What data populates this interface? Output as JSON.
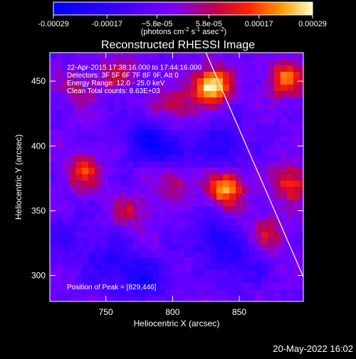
{
  "chart_data": {
    "type": "heatmap",
    "title": "Reconstructed RHESSI Image",
    "xlabel": "Heliocentric X (arcsec)",
    "ylabel": "Heliocentric Y (arcsec)",
    "xlim": [
      708,
      898
    ],
    "ylim": [
      280,
      472
    ],
    "x_ticks": [
      {
        "value": 750,
        "label": "750"
      },
      {
        "value": 800,
        "label": "800"
      },
      {
        "value": 850,
        "label": "850"
      }
    ],
    "y_ticks": [
      {
        "value": 300,
        "label": "300"
      },
      {
        "value": 350,
        "label": "350"
      },
      {
        "value": 400,
        "label": "400"
      },
      {
        "value": 450,
        "label": "450"
      }
    ],
    "colorbar": {
      "range": [
        -0.00029,
        0.00029
      ],
      "ticks": [
        {
          "value": -0.00029,
          "label": "-0.00029"
        },
        {
          "value": -0.00017,
          "label": "-0.00017"
        },
        {
          "value": -5.8e-05,
          "label": "−5.8e-05"
        },
        {
          "value": 5.8e-05,
          "label": "5.8e-05"
        },
        {
          "value": 0.00017,
          "label": "0.00017"
        },
        {
          "value": 0.00029,
          "label": "0.00029"
        }
      ],
      "unit_prefix": "(photons cm",
      "unit_sup1": "-2",
      "unit_mid": " s",
      "unit_sup2": "-1",
      "unit_suffix": " asec",
      "unit_sup3": "-2",
      "unit_end": ")"
    },
    "info_lines": [
      "22-Apr-2015 17:38:16.000 to 17:44:16.000",
      "Detectors: 3F 5F 6F 7F 8F 9F, Att 0",
      "Energy Range: 12.0 - 25.0 keV",
      "Clean    Total counts: 8.63E+03"
    ],
    "peak_label": "Position of Peak = [829,446]",
    "peak": {
      "x": 829,
      "y": 446
    },
    "limb_line": [
      {
        "x": 825,
        "y": 472
      },
      {
        "x": 898,
        "y": 299
      }
    ],
    "bright_sources": [
      {
        "x": 829,
        "y": 446,
        "intensity": 0.00029
      },
      {
        "x": 885,
        "y": 452,
        "intensity": 0.00019
      },
      {
        "x": 800,
        "y": 430,
        "intensity": 0.00012
      },
      {
        "x": 733,
        "y": 380,
        "intensity": 0.00015
      },
      {
        "x": 800,
        "y": 373,
        "intensity": 0.00012
      },
      {
        "x": 840,
        "y": 367,
        "intensity": 0.00023
      },
      {
        "x": 889,
        "y": 371,
        "intensity": 0.00017
      },
      {
        "x": 872,
        "y": 333,
        "intensity": 0.00011
      },
      {
        "x": 770,
        "y": 350,
        "intensity": 0.0001
      },
      {
        "x": 760,
        "y": 457,
        "intensity": 0.0001
      },
      {
        "x": 730,
        "y": 445,
        "intensity": 8e-05
      }
    ],
    "dark_sources": [
      {
        "x": 780,
        "y": 405,
        "intensity": -0.00017
      },
      {
        "x": 800,
        "y": 396,
        "intensity": -0.00013
      },
      {
        "x": 838,
        "y": 400,
        "intensity": -0.00013
      },
      {
        "x": 830,
        "y": 330,
        "intensity": -0.00014
      },
      {
        "x": 752,
        "y": 310,
        "intensity": -0.00012
      },
      {
        "x": 778,
        "y": 298,
        "intensity": -0.00015
      },
      {
        "x": 850,
        "y": 310,
        "intensity": -0.00011
      },
      {
        "x": 720,
        "y": 330,
        "intensity": -8e-05
      }
    ]
  },
  "timestamp": "20-May-2022 16:02",
  "colors": {
    "background": "#000000",
    "foreground": "#ffffff"
  }
}
